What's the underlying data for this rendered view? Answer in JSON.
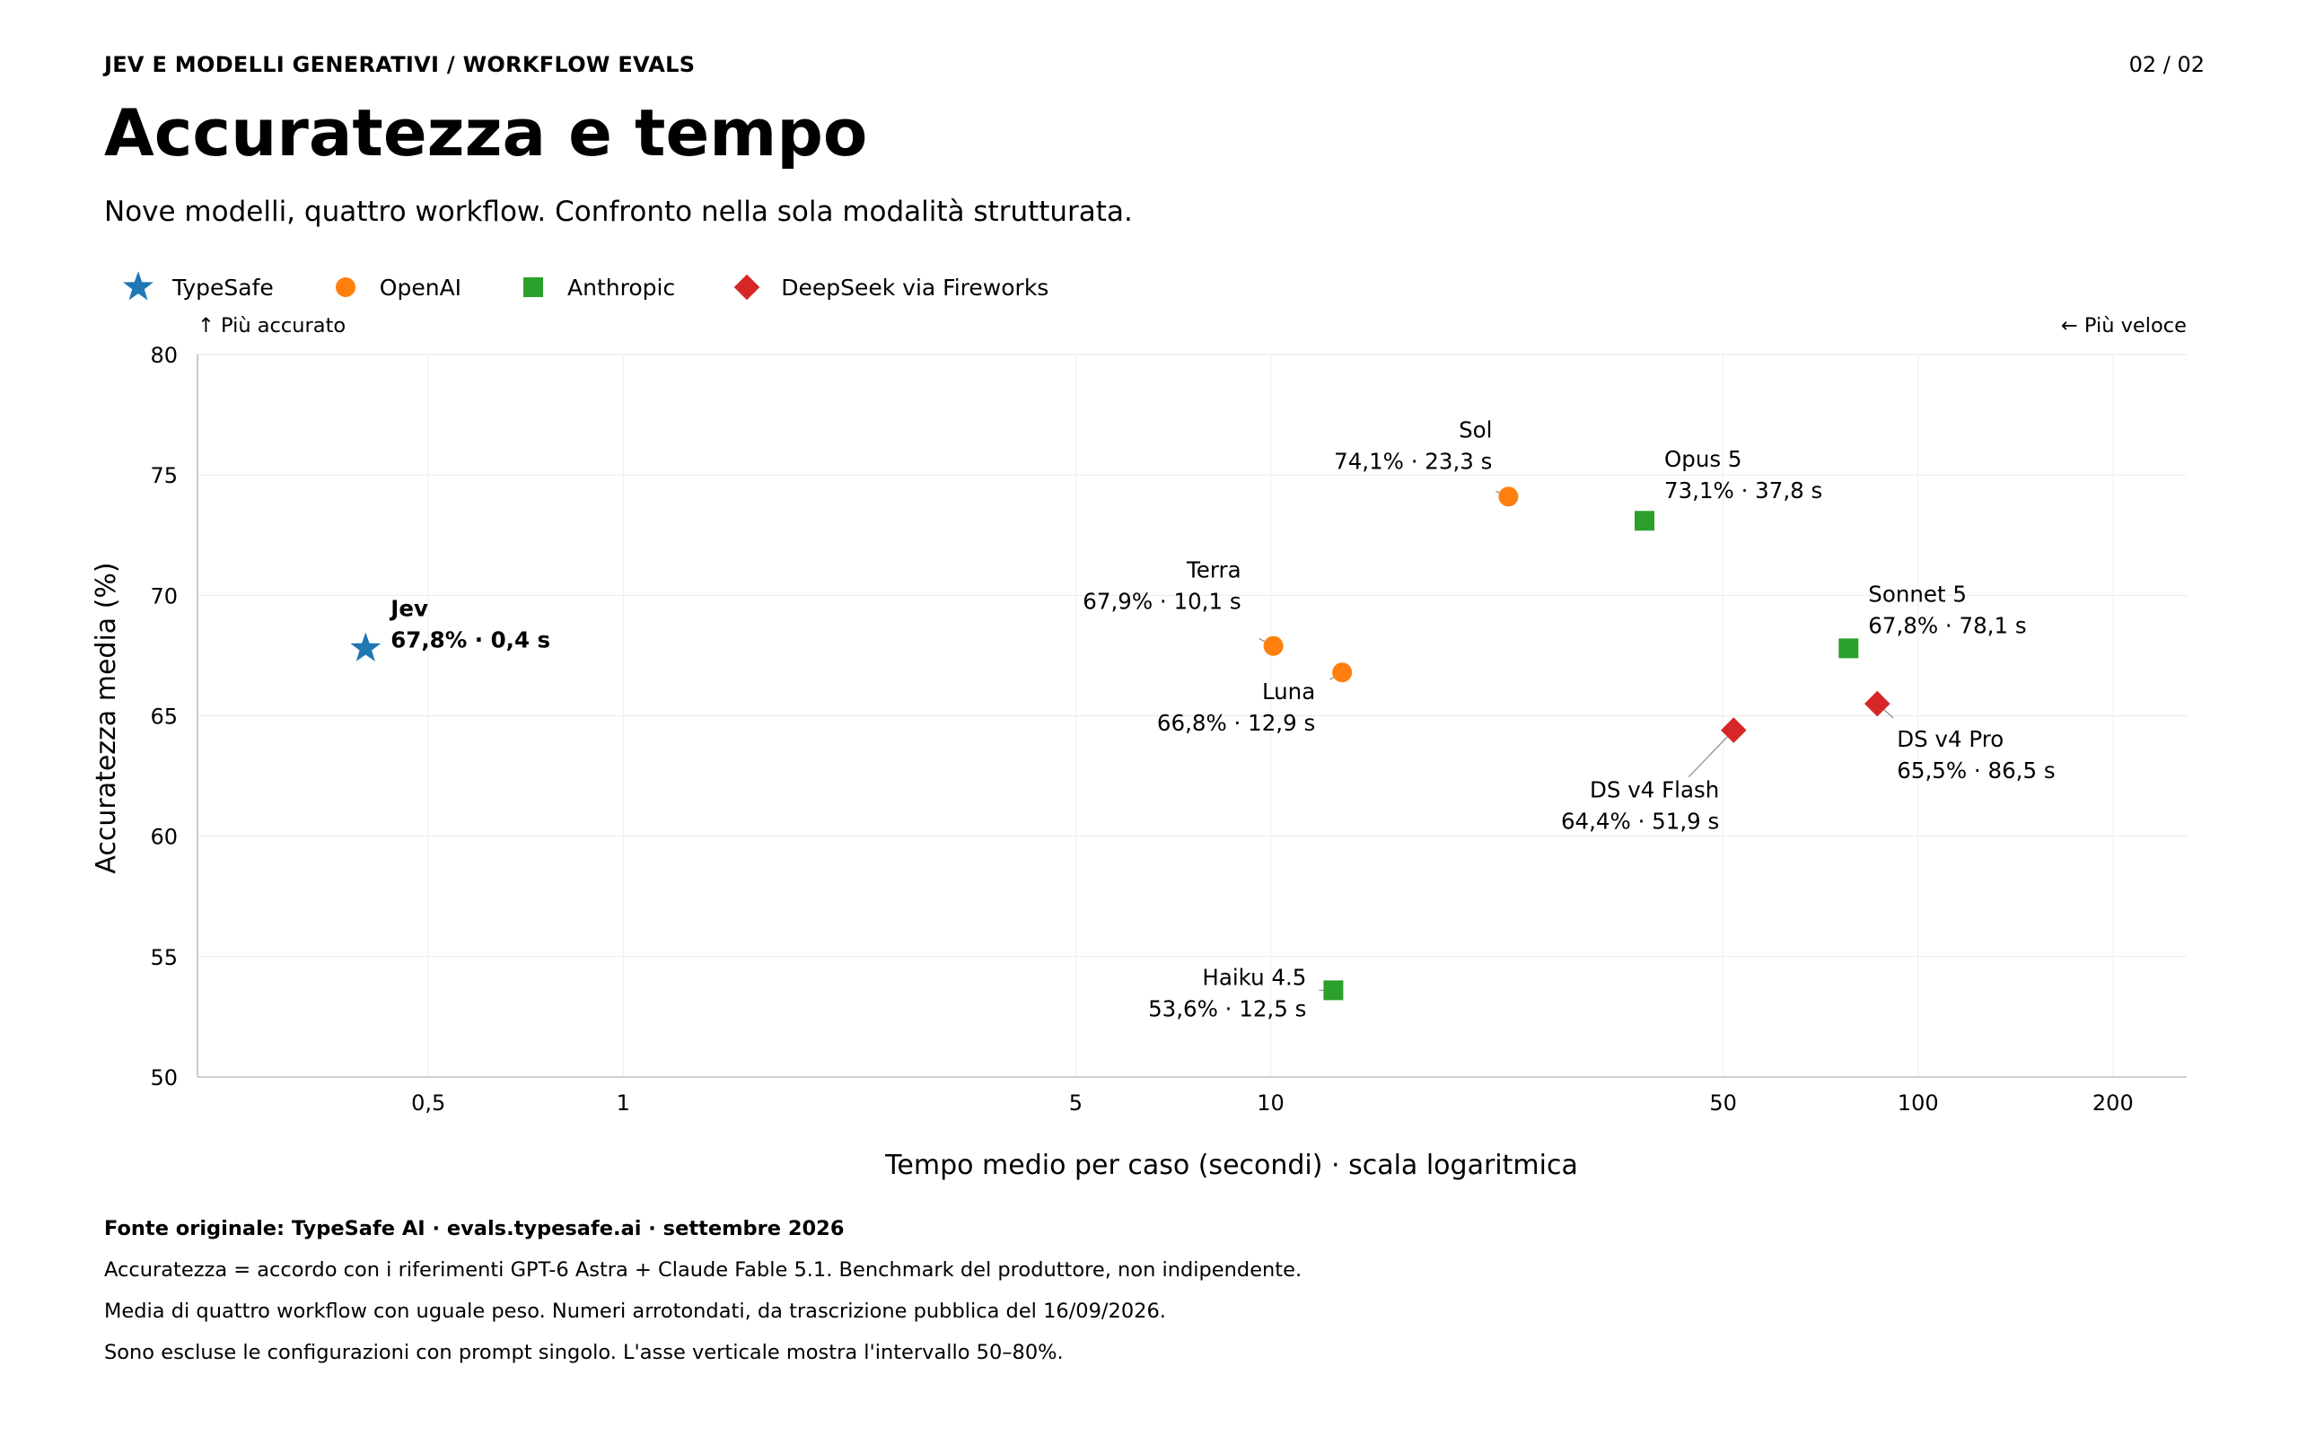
{
  "header": {
    "kicker": "JEV E MODELLI GENERATIVI  /  WORKFLOW EVALS",
    "page": "02 / 02",
    "title": "Accuratezza e tempo",
    "subtitle": "Nove modelli, quattro workflow. Confronto nella sola modalità strutturata."
  },
  "legend": [
    {
      "name": "TypeSafe",
      "marker": "star",
      "color": "#1f77b4"
    },
    {
      "name": "OpenAI",
      "marker": "circle",
      "color": "#ff7f0e"
    },
    {
      "name": "Anthropic",
      "marker": "square",
      "color": "#2ca02c"
    },
    {
      "name": "DeepSeek via Fireworks",
      "marker": "diamond",
      "color": "#d62728"
    }
  ],
  "chart_data": {
    "type": "scatter",
    "xlabel": "Tempo medio per caso (secondi) · scala logaritmica",
    "ylabel": "Accuratezza media (%)",
    "x_scale": "log",
    "xlim": [
      0.22,
      260
    ],
    "ylim": [
      50,
      80
    ],
    "x_ticks": [
      0.5,
      1,
      5,
      10,
      50,
      100,
      200
    ],
    "x_tick_labels": [
      "0,5",
      "1",
      "5",
      "10",
      "50",
      "100",
      "200"
    ],
    "y_ticks": [
      50,
      55,
      60,
      65,
      70,
      75,
      80
    ],
    "y_tick_labels": [
      "50",
      "55",
      "60",
      "65",
      "70",
      "75",
      "80"
    ],
    "corner_notes": {
      "top_left": "↑ Più accurato",
      "top_right": "← Più veloce"
    },
    "grid": true,
    "points": [
      {
        "name": "Jev",
        "label": "67,8% · 0,4 s",
        "group": "TypeSafe",
        "x": 0.4,
        "y": 67.8,
        "bold": true
      },
      {
        "name": "Sol",
        "label": "74,1% · 23,3 s",
        "group": "OpenAI",
        "x": 23.3,
        "y": 74.1
      },
      {
        "name": "Terra",
        "label": "67,9% · 10,1 s",
        "group": "OpenAI",
        "x": 10.1,
        "y": 67.9
      },
      {
        "name": "Luna",
        "label": "66,8% · 12,9 s",
        "group": "OpenAI",
        "x": 12.9,
        "y": 66.8
      },
      {
        "name": "Opus 5",
        "label": "73,1% · 37,8 s",
        "group": "Anthropic",
        "x": 37.8,
        "y": 73.1
      },
      {
        "name": "Sonnet 5",
        "label": "67,8% · 78,1 s",
        "group": "Anthropic",
        "x": 78.1,
        "y": 67.8
      },
      {
        "name": "Haiku 4.5",
        "label": "53,6% · 12,5 s",
        "group": "Anthropic",
        "x": 12.5,
        "y": 53.6
      },
      {
        "name": "DS v4 Flash",
        "label": "64,4% · 51,9 s",
        "group": "DeepSeek via Fireworks",
        "x": 51.9,
        "y": 64.4
      },
      {
        "name": "DS v4 Pro",
        "label": "65,5% · 86,5 s",
        "group": "DeepSeek via Fireworks",
        "x": 86.5,
        "y": 65.5
      }
    ]
  },
  "footer": {
    "source": "Fonte originale: TypeSafe AI · evals.typesafe.ai · settembre 2026",
    "notes": [
      "Accuratezza = accordo con i riferimenti GPT-6 Astra + Claude Fable 5.1. Benchmark del produttore, non indipendente.",
      "Media di quattro workflow con uguale peso. Numeri arrotondati, da trascrizione pubblica del 16/09/2026.",
      "Sono escluse le configurazioni con prompt singolo. L'asse verticale mostra l'intervallo 50–80%."
    ]
  }
}
